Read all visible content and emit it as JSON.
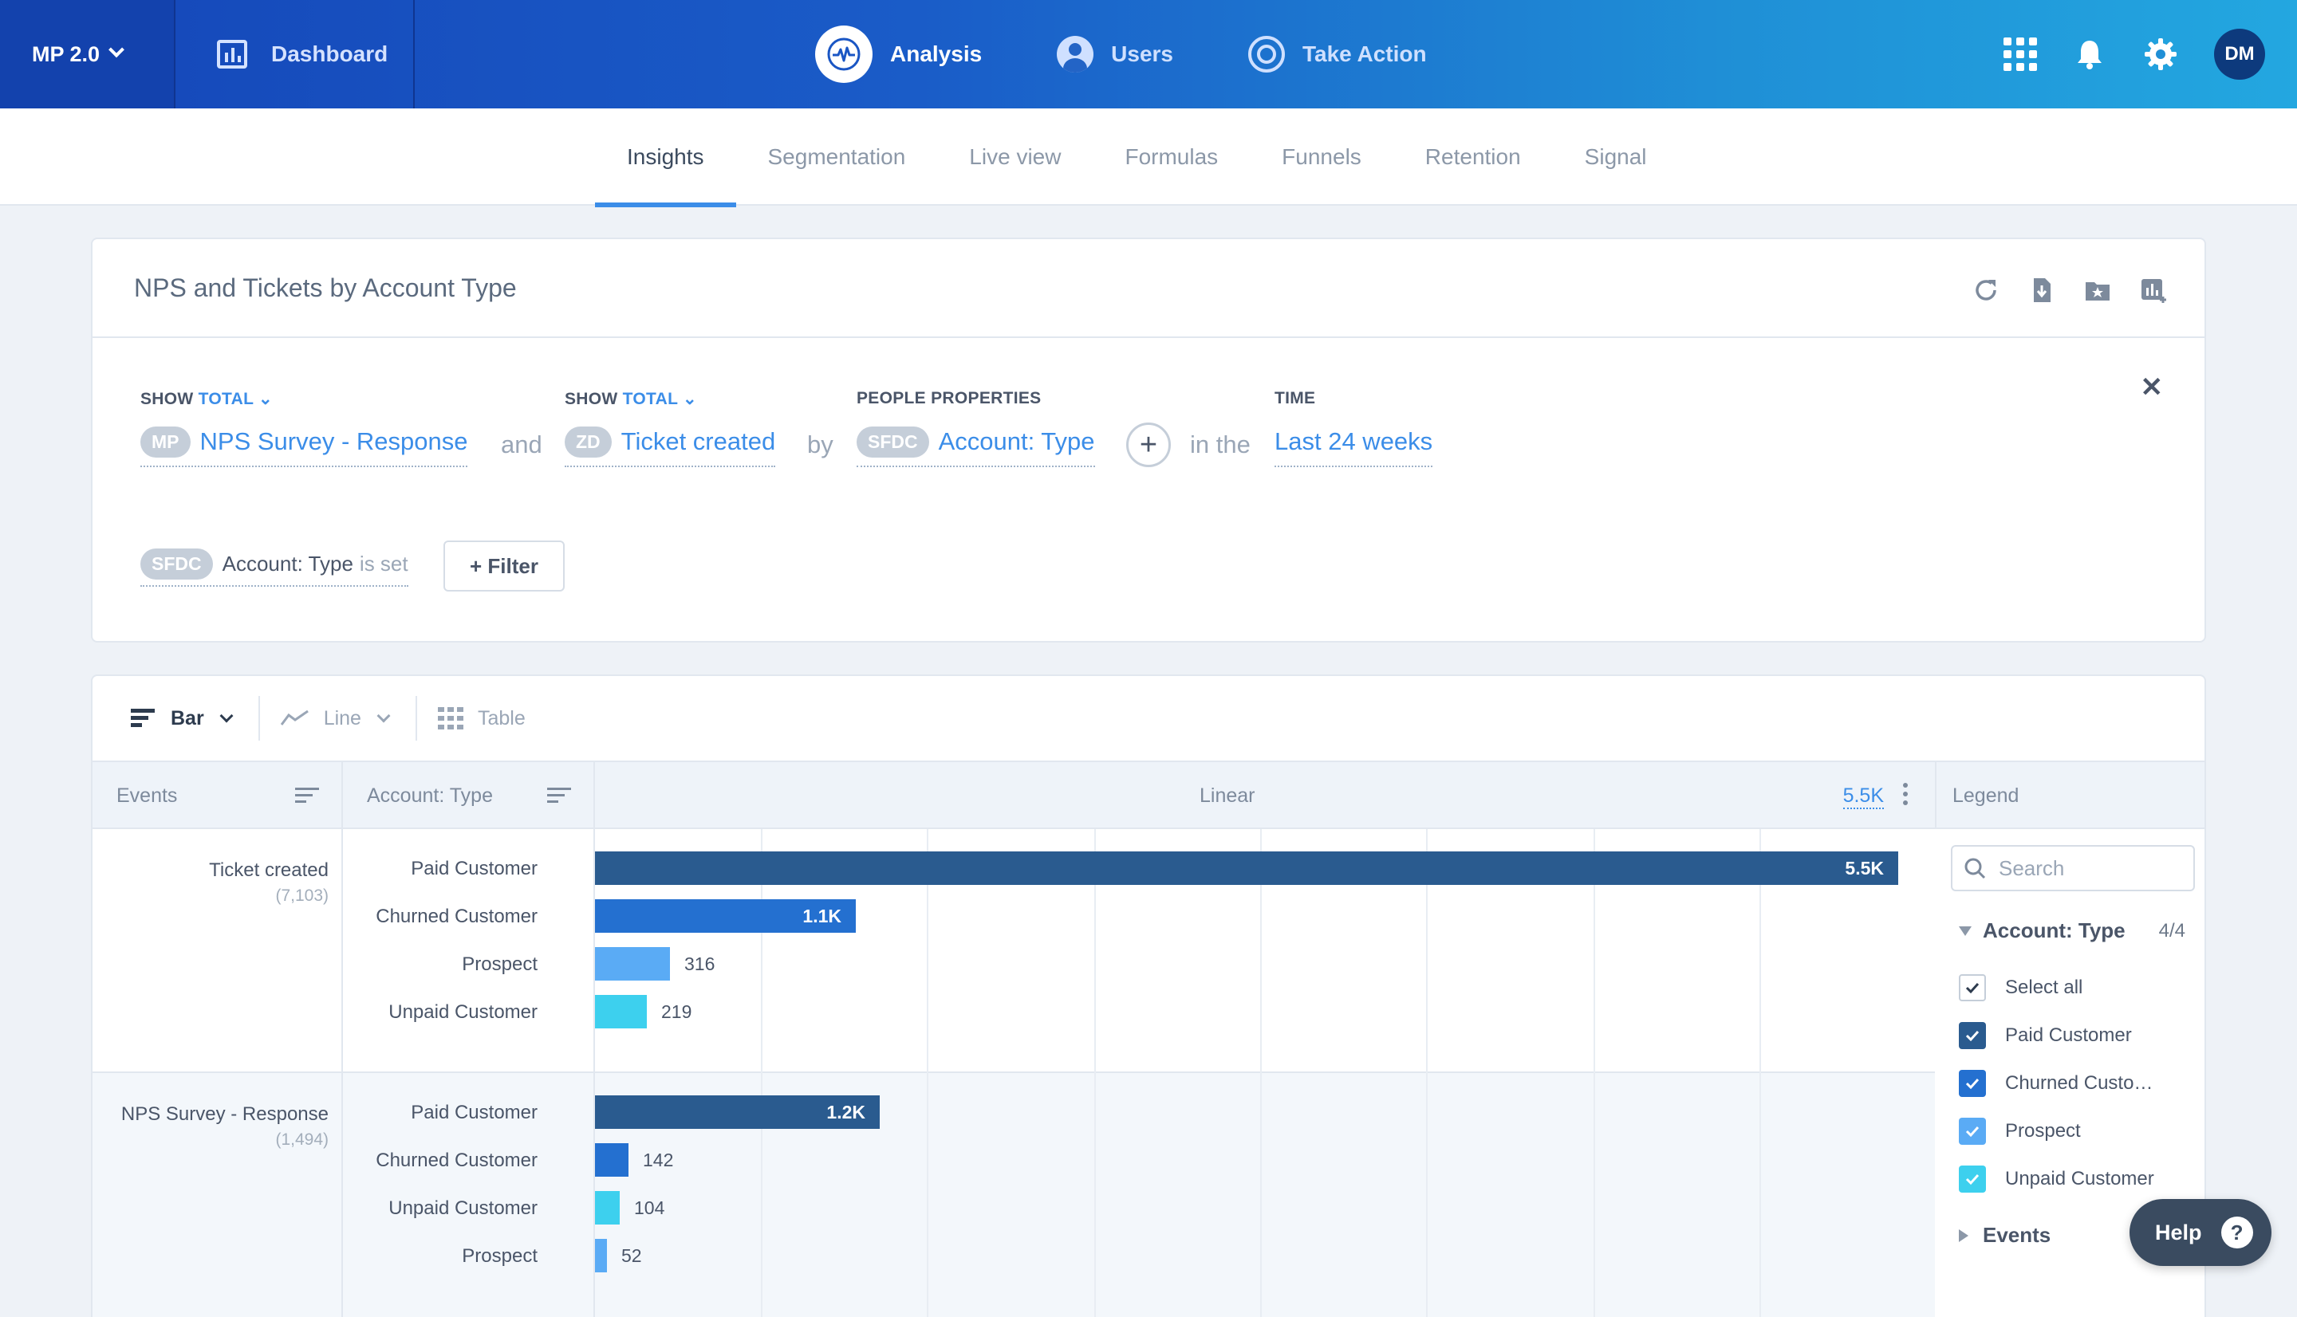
{
  "topnav": {
    "brand": "MP 2.0",
    "dashboard": "Dashboard",
    "links": [
      {
        "label": "Analysis",
        "icon": "pulse-icon",
        "active": true
      },
      {
        "label": "Users",
        "icon": "user-icon",
        "active": false
      },
      {
        "label": "Take Action",
        "icon": "target-icon",
        "active": false
      }
    ],
    "avatar": "DM"
  },
  "subnav": [
    "Insights",
    "Segmentation",
    "Live view",
    "Formulas",
    "Funnels",
    "Retention",
    "Signal"
  ],
  "report": {
    "title": "NPS and Tickets by Account Type",
    "show1_label": "SHOW",
    "show1_value": "TOTAL",
    "show2_label": "SHOW",
    "show2_value": "TOTAL",
    "people_label": "PEOPLE PROPERTIES",
    "time_label": "TIME",
    "event1_source": "MP",
    "event1": "NPS Survey - Response",
    "and": "and",
    "event2_source": "ZD",
    "event2": "Ticket created",
    "by": "by",
    "prop_source": "SFDC",
    "prop": "Account: Type",
    "in_the": "in the",
    "time": "Last 24 weeks",
    "filter_source": "SFDC",
    "filter_prop": "Account: Type",
    "filter_op": "is set",
    "filter_btn": "+ Filter"
  },
  "viz": {
    "bar": "Bar",
    "line": "Line",
    "table": "Table"
  },
  "table": {
    "col_events": "Events",
    "col_property": "Account: Type",
    "col_scale": "Linear",
    "max_value": "5.5K",
    "col_legend": "Legend"
  },
  "chart_data": {
    "type": "bar",
    "orientation": "horizontal",
    "max": 5500,
    "groups": [
      {
        "event": "Ticket created",
        "total": "(7,103)",
        "rows": [
          {
            "category": "Paid Customer",
            "value": 5500,
            "label": "5.5K",
            "color": "#2a5b8f"
          },
          {
            "category": "Churned Customer",
            "value": 1100,
            "label": "1.1K",
            "color": "#2470d0"
          },
          {
            "category": "Prospect",
            "value": 316,
            "label": "316",
            "color": "#5aabf5"
          },
          {
            "category": "Unpaid Customer",
            "value": 219,
            "label": "219",
            "color": "#3dd0ee"
          }
        ]
      },
      {
        "event": "NPS Survey - Response",
        "total": "(1,494)",
        "rows": [
          {
            "category": "Paid Customer",
            "value": 1200,
            "label": "1.2K",
            "color": "#2a5b8f"
          },
          {
            "category": "Churned Customer",
            "value": 142,
            "label": "142",
            "color": "#2470d0"
          },
          {
            "category": "Unpaid Customer",
            "value": 104,
            "label": "104",
            "color": "#3dd0ee"
          },
          {
            "category": "Prospect",
            "value": 52,
            "label": "52",
            "color": "#5aabf5"
          }
        ]
      }
    ]
  },
  "legend": {
    "search_placeholder": "Search",
    "group_label": "Account: Type",
    "group_count": "4/4",
    "items": [
      {
        "label": "Select all",
        "color": ""
      },
      {
        "label": "Paid Customer",
        "color": "#2a5b8f"
      },
      {
        "label": "Churned Custo…",
        "color": "#2470d0"
      },
      {
        "label": "Prospect",
        "color": "#5aabf5"
      },
      {
        "label": "Unpaid Customer",
        "color": "#3dd0ee"
      }
    ],
    "events_label": "Events"
  },
  "help": "Help"
}
